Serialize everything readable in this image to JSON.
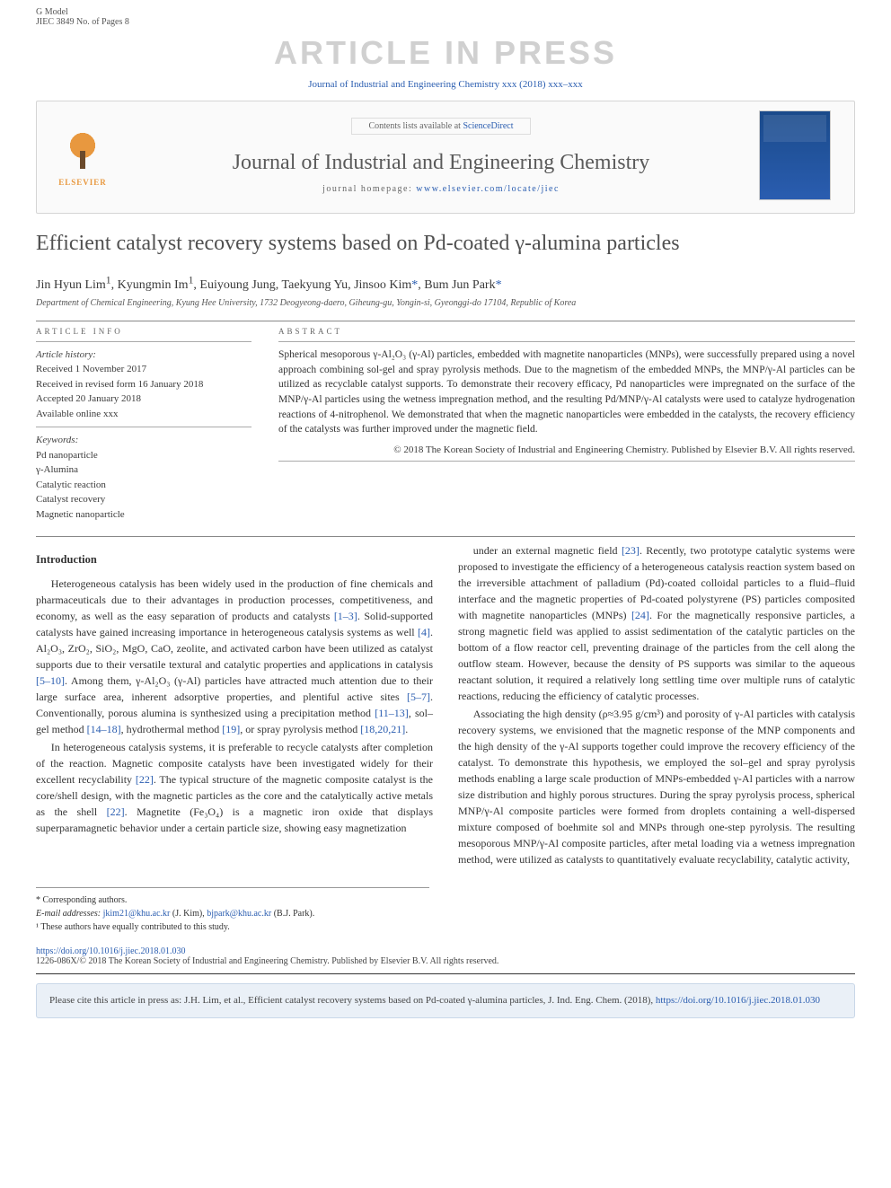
{
  "header": {
    "gmodel_label": "G Model",
    "gmodel_code": "JIEC 3849 No. of Pages 8",
    "watermark": "ARTICLE IN PRESS",
    "citation_top": "Journal of Industrial and Engineering Chemistry xxx (2018) xxx–xxx"
  },
  "banner": {
    "elsevier_label": "ELSEVIER",
    "contents_prefix": "Contents lists available at ",
    "contents_link": "ScienceDirect",
    "journal_name": "Journal of Industrial and Engineering Chemistry",
    "homepage_prefix": "journal homepage: ",
    "homepage_url": "www.elsevier.com/locate/jiec"
  },
  "article": {
    "title": "Efficient catalyst recovery systems based on Pd-coated γ-alumina particles",
    "authors_html": "Jin Hyun Lim¹, Kyungmin Im¹, Euiyoung Jung, Taekyung Yu, Jinsoo Kim*, Bum Jun Park*",
    "affiliation": "Department of Chemical Engineering, Kyung Hee University, 1732 Deogyeong-daero, Giheung-gu, Yongin-si, Gyeonggi-do 17104, Republic of Korea"
  },
  "info": {
    "head": "ARTICLE INFO",
    "history_label": "Article history:",
    "history": [
      "Received 1 November 2017",
      "Received in revised form 16 January 2018",
      "Accepted 20 January 2018",
      "Available online xxx"
    ],
    "keywords_label": "Keywords:",
    "keywords": [
      "Pd nanoparticle",
      "γ-Alumina",
      "Catalytic reaction",
      "Catalyst recovery",
      "Magnetic nanoparticle"
    ]
  },
  "abstract": {
    "head": "ABSTRACT",
    "text": "Spherical mesoporous γ-Al₂O₃ (γ-Al) particles, embedded with magnetite nanoparticles (MNPs), were successfully prepared using a novel approach combining sol-gel and spray pyrolysis methods. Due to the magnetism of the embedded MNPs, the MNP/γ-Al particles can be utilized as recyclable catalyst supports. To demonstrate their recovery efficacy, Pd nanoparticles were impregnated on the surface of the MNP/γ-Al particles using the wetness impregnation method, and the resulting Pd/MNP/γ-Al catalysts were used to catalyze hydrogenation reactions of 4-nitrophenol. We demonstrated that when the magnetic nanoparticles were embedded in the catalysts, the recovery efficiency of the catalysts was further improved under the magnetic field.",
    "copyright": "© 2018 The Korean Society of Industrial and Engineering Chemistry. Published by Elsevier B.V. All rights reserved."
  },
  "body": {
    "intro_head": "Introduction",
    "p1": "Heterogeneous catalysis has been widely used in the production of fine chemicals and pharmaceuticals due to their advantages in production processes, competitiveness, and economy, as well as the easy separation of products and catalysts [1–3]. Solid-supported catalysts have gained increasing importance in heterogeneous catalysis systems as well [4]. Al₂O₃, ZrO₂, SiO₂, MgO, CaO, zeolite, and activated carbon have been utilized as catalyst supports due to their versatile textural and catalytic properties and applications in catalysis [5–10]. Among them, γ-Al₂O₃ (γ-Al) particles have attracted much attention due to their large surface area, inherent adsorptive properties, and plentiful active sites [5–7]. Conventionally, porous alumina is synthesized using a precipitation method [11–13], sol–gel method [14–18], hydrothermal method [19], or spray pyrolysis method [18,20,21].",
    "p2": "In heterogeneous catalysis systems, it is preferable to recycle catalysts after completion of the reaction. Magnetic composite catalysts have been investigated widely for their excellent recyclability [22]. The typical structure of the magnetic composite catalyst is the core/shell design, with the magnetic particles as the core and the catalytically active metals as the shell [22]. Magnetite (Fe₃O₄) is a magnetic iron oxide that displays superparamagnetic behavior under a certain particle size, showing easy magnetization",
    "p3": "under an external magnetic field [23]. Recently, two prototype catalytic systems were proposed to investigate the efficiency of a heterogeneous catalysis reaction system based on the irreversible attachment of palladium (Pd)-coated colloidal particles to a fluid–fluid interface and the magnetic properties of Pd-coated polystyrene (PS) particles composited with magnetite nanoparticles (MNPs) [24]. For the magnetically responsive particles, a strong magnetic field was applied to assist sedimentation of the catalytic particles on the bottom of a flow reactor cell, preventing drainage of the particles from the cell along the outflow steam. However, because the density of PS supports was similar to the aqueous reactant solution, it required a relatively long settling time over multiple runs of catalytic reactions, reducing the efficiency of catalytic processes.",
    "p4": "Associating the high density (ρ≈3.95 g/cm³) and porosity of γ-Al particles with catalysis recovery systems, we envisioned that the magnetic response of the MNP components and the high density of the γ-Al supports together could improve the recovery efficiency of the catalyst. To demonstrate this hypothesis, we employed the sol–gel and spray pyrolysis methods enabling a large scale production of MNPs-embedded γ-Al particles with a narrow size distribution and highly porous structures. During the spray pyrolysis process, spherical MNP/γ-Al composite particles were formed from droplets containing a well-dispersed mixture composed of boehmite sol and MNPs through one-step pyrolysis. The resulting mesoporous MNP/γ-Al composite particles, after metal loading via a wetness impregnation method, were utilized as catalysts to quantitatively evaluate recyclability, catalytic activity,"
  },
  "footnotes": {
    "corr_label": "* Corresponding authors.",
    "email_label": "E-mail addresses:",
    "email1": "jkim21@khu.ac.kr",
    "email1_name": "(J. Kim),",
    "email2": "bjpark@khu.ac.kr",
    "email2_name": "(B.J. Park).",
    "equal": "¹ These authors have equally contributed to this study."
  },
  "doi": {
    "url": "https://doi.org/10.1016/j.jiec.2018.01.030",
    "issn_line": "1226-086X/© 2018 The Korean Society of Industrial and Engineering Chemistry. Published by Elsevier B.V. All rights reserved."
  },
  "citebox": {
    "text": "Please cite this article in press as: J.H. Lim, et al., Efficient catalyst recovery systems based on Pd-coated γ-alumina particles, J. Ind. Eng. Chem. (2018), ",
    "link": "https://doi.org/10.1016/j.jiec.2018.01.030"
  },
  "colors": {
    "link": "#2a5db0",
    "watermark": "#d0d0d0",
    "elsevier_orange": "#e8983f",
    "cite_bg": "#eaf0f7"
  }
}
